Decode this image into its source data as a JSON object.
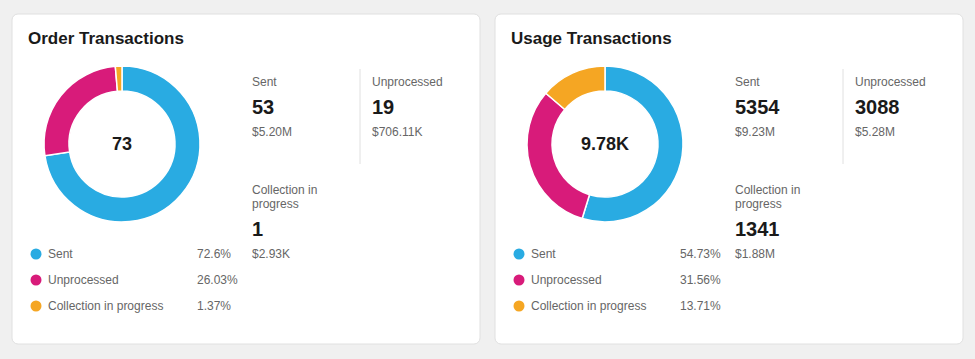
{
  "chart_data": [
    {
      "type": "donut",
      "title": "Order Transactions",
      "center_label": "73",
      "categories": [
        "Sent",
        "Unprocessed",
        "Collection in progress"
      ],
      "values": [
        72.6,
        26.03,
        1.37
      ],
      "value_labels": [
        "72.6%",
        "26.03%",
        "1.37%"
      ],
      "colors": [
        "#29ABE2",
        "#D81B7A",
        "#F5A623"
      ],
      "legend": "bottom",
      "stats": [
        {
          "label": "Sent",
          "count": 53,
          "amount": "$5.20M"
        },
        {
          "label": "Unprocessed",
          "count": 19,
          "amount": "$706.11K"
        },
        {
          "label": "Collection in\nprogress",
          "count": 1,
          "amount": "$2.93K"
        }
      ]
    },
    {
      "type": "donut",
      "title": "Usage Transactions",
      "center_label": "9.78K",
      "categories": [
        "Sent",
        "Unprocessed",
        "Collection in progress"
      ],
      "values": [
        54.73,
        31.56,
        13.71
      ],
      "value_labels": [
        "54.73%",
        "31.56%",
        "13.71%"
      ],
      "colors": [
        "#29ABE2",
        "#D81B7A",
        "#F5A623"
      ],
      "legend": "bottom",
      "stats": [
        {
          "label": "Sent",
          "count": 5354,
          "amount": "$9.23M"
        },
        {
          "label": "Unprocessed",
          "count": 3088,
          "amount": "$5.28M"
        },
        {
          "label": "Collection in\nprogress",
          "count": 1341,
          "amount": "$1.88M"
        }
      ]
    }
  ]
}
